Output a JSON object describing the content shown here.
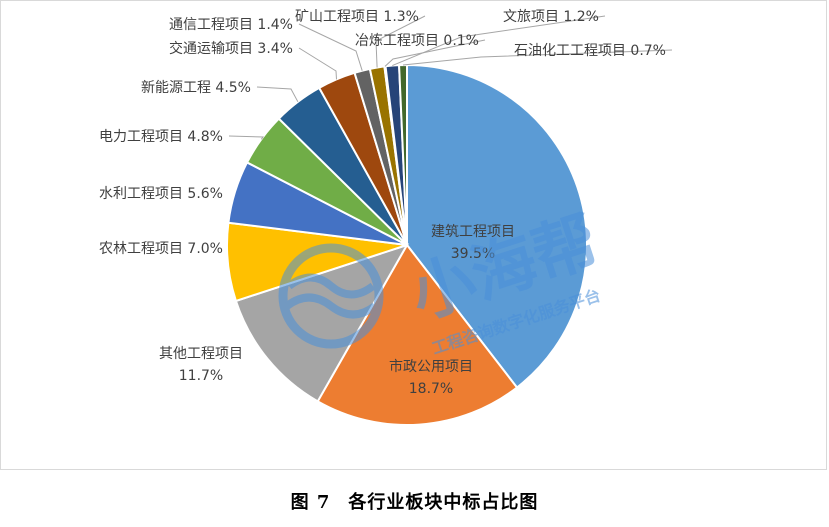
{
  "chart_data": {
    "type": "pie",
    "start_angle_deg": 0,
    "direction": "clockwise",
    "grid": false,
    "legend": "none",
    "slices": [
      {
        "label": "建筑工程项目",
        "value": 39.5,
        "pct": "39.5%",
        "color": "#5b9bd5"
      },
      {
        "label": "市政公用项目",
        "value": 18.7,
        "pct": "18.7%",
        "color": "#ed7d31"
      },
      {
        "label": "其他工程项目",
        "value": 11.7,
        "pct": "11.7%",
        "color": "#a5a5a5"
      },
      {
        "label": "农林工程项目",
        "value": 7.0,
        "pct": "7.0%",
        "color": "#ffc000"
      },
      {
        "label": "水利工程项目",
        "value": 5.6,
        "pct": "5.6%",
        "color": "#4472c4"
      },
      {
        "label": "电力工程项目",
        "value": 4.8,
        "pct": "4.8%",
        "color": "#70ad47"
      },
      {
        "label": "新能源工程",
        "value": 4.5,
        "pct": "4.5%",
        "color": "#255e91"
      },
      {
        "label": "交通运输项目",
        "value": 3.4,
        "pct": "3.4%",
        "color": "#9e480e"
      },
      {
        "label": "通信工程项目",
        "value": 1.4,
        "pct": "1.4%",
        "color": "#636363"
      },
      {
        "label": "矿山工程项目",
        "value": 1.3,
        "pct": "1.3%",
        "color": "#997300"
      },
      {
        "label": "冶炼工程项目",
        "value": 0.1,
        "pct": "0.1%",
        "color": "#264478"
      },
      {
        "label": "文旅项目",
        "value": 1.2,
        "pct": "1.2%",
        "color": "#264478"
      },
      {
        "label": "石油化工工程项目",
        "value": 0.7,
        "pct": "0.7%",
        "color": "#43682b"
      }
    ]
  },
  "caption": {
    "number": "图 7",
    "text": "各行业板块中标占比图"
  },
  "watermark": {
    "brand": "小海帮",
    "tagline": "工程咨询数字化服务平台",
    "color": "#4a90d9"
  }
}
